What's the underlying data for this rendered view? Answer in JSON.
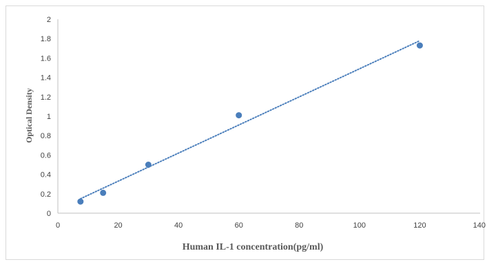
{
  "chart_data": {
    "type": "scatter",
    "title": "",
    "xlabel": "Human IL-1 concentration(pg/ml)",
    "ylabel": "Optical Density",
    "xlim": [
      0,
      140
    ],
    "ylim": [
      0,
      2
    ],
    "xticks": [
      0,
      20,
      40,
      60,
      80,
      100,
      120,
      140
    ],
    "yticks": [
      0,
      0.2,
      0.4,
      0.6,
      0.8,
      1,
      1.2,
      1.4,
      1.6,
      1.8,
      2
    ],
    "grid": false,
    "legend": "none",
    "series": [
      {
        "x": [
          7.5,
          15,
          30,
          60,
          120
        ],
        "y": [
          0.12,
          0.21,
          0.5,
          1.01,
          1.73
        ],
        "color": "#4a7ebb",
        "trendline": "linear"
      }
    ],
    "trendline_color": "#4a7ebb",
    "axis_color": "#bfbfbf"
  }
}
